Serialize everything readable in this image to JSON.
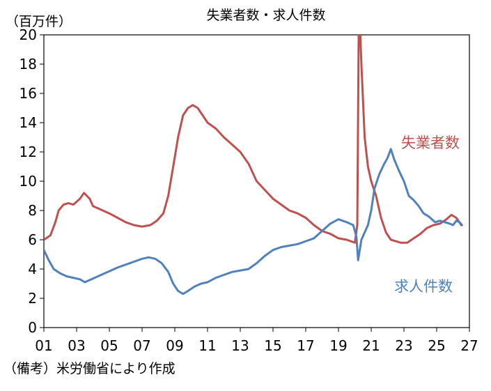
{
  "chart_data": {
    "type": "line",
    "title": "失業者数・求人件数",
    "y_unit": "（百万件）",
    "source": "（備考）米労働省により作成",
    "x_range": [
      2001.0,
      2027.0
    ],
    "ylim": [
      0,
      20
    ],
    "y_ticks": [
      0,
      2,
      4,
      6,
      8,
      10,
      12,
      14,
      16,
      18,
      20
    ],
    "x_ticks": [
      {
        "x": 2001,
        "label": "01"
      },
      {
        "x": 2003,
        "label": "03"
      },
      {
        "x": 2005,
        "label": "05"
      },
      {
        "x": 2007,
        "label": "07"
      },
      {
        "x": 2009,
        "label": "09"
      },
      {
        "x": 2011,
        "label": "11"
      },
      {
        "x": 2013,
        "label": "13"
      },
      {
        "x": 2015,
        "label": "15"
      },
      {
        "x": 2017,
        "label": "17"
      },
      {
        "x": 2019,
        "label": "19"
      },
      {
        "x": 2021,
        "label": "21"
      },
      {
        "x": 2023,
        "label": "23"
      },
      {
        "x": 2025,
        "label": "25"
      },
      {
        "x": 2027,
        "label": "27"
      }
    ],
    "grid": false,
    "legend": "direct labels",
    "series": [
      {
        "name": "失業者数",
        "color": "#C0504D",
        "points": [
          [
            2001.0,
            6.0
          ],
          [
            2001.4,
            6.3
          ],
          [
            2001.7,
            7.2
          ],
          [
            2001.9,
            8.0
          ],
          [
            2002.2,
            8.4
          ],
          [
            2002.5,
            8.5
          ],
          [
            2002.8,
            8.4
          ],
          [
            2003.2,
            8.8
          ],
          [
            2003.45,
            9.2
          ],
          [
            2003.8,
            8.8
          ],
          [
            2004.0,
            8.3
          ],
          [
            2004.4,
            8.1
          ],
          [
            2005.0,
            7.8
          ],
          [
            2005.5,
            7.5
          ],
          [
            2006.0,
            7.2
          ],
          [
            2006.5,
            7.0
          ],
          [
            2007.0,
            6.9
          ],
          [
            2007.5,
            7.0
          ],
          [
            2007.9,
            7.3
          ],
          [
            2008.3,
            7.8
          ],
          [
            2008.6,
            9.0
          ],
          [
            2008.9,
            11.0
          ],
          [
            2009.2,
            13.0
          ],
          [
            2009.5,
            14.5
          ],
          [
            2009.8,
            15.0
          ],
          [
            2010.1,
            15.2
          ],
          [
            2010.4,
            15.0
          ],
          [
            2010.7,
            14.5
          ],
          [
            2011.0,
            14.0
          ],
          [
            2011.5,
            13.6
          ],
          [
            2012.0,
            13.0
          ],
          [
            2012.5,
            12.5
          ],
          [
            2013.0,
            12.0
          ],
          [
            2013.5,
            11.2
          ],
          [
            2014.0,
            10.0
          ],
          [
            2014.5,
            9.4
          ],
          [
            2015.0,
            8.8
          ],
          [
            2015.5,
            8.4
          ],
          [
            2016.0,
            8.0
          ],
          [
            2016.5,
            7.8
          ],
          [
            2017.0,
            7.5
          ],
          [
            2017.5,
            7.0
          ],
          [
            2018.0,
            6.6
          ],
          [
            2018.5,
            6.4
          ],
          [
            2019.0,
            6.1
          ],
          [
            2019.5,
            6.0
          ],
          [
            2020.0,
            5.8
          ],
          [
            2020.15,
            7.0
          ],
          [
            2020.25,
            22.5
          ],
          [
            2020.4,
            18.0
          ],
          [
            2020.6,
            13.0
          ],
          [
            2020.8,
            11.0
          ],
          [
            2021.0,
            10.0
          ],
          [
            2021.3,
            9.0
          ],
          [
            2021.6,
            7.5
          ],
          [
            2021.9,
            6.5
          ],
          [
            2022.2,
            6.0
          ],
          [
            2022.5,
            5.9
          ],
          [
            2022.8,
            5.8
          ],
          [
            2023.2,
            5.8
          ],
          [
            2023.6,
            6.1
          ],
          [
            2024.0,
            6.4
          ],
          [
            2024.4,
            6.8
          ],
          [
            2024.8,
            7.0
          ],
          [
            2025.2,
            7.1
          ],
          [
            2025.6,
            7.4
          ],
          [
            2025.9,
            7.7
          ],
          [
            2026.2,
            7.5
          ],
          [
            2026.5,
            7.0
          ]
        ]
      },
      {
        "name": "求人件数",
        "color": "#4F81BD",
        "points": [
          [
            2001.0,
            5.3
          ],
          [
            2001.3,
            4.6
          ],
          [
            2001.6,
            4.0
          ],
          [
            2002.0,
            3.7
          ],
          [
            2002.4,
            3.5
          ],
          [
            2002.8,
            3.4
          ],
          [
            2003.2,
            3.3
          ],
          [
            2003.5,
            3.1
          ],
          [
            2003.9,
            3.3
          ],
          [
            2004.3,
            3.5
          ],
          [
            2004.7,
            3.7
          ],
          [
            2005.1,
            3.9
          ],
          [
            2005.5,
            4.1
          ],
          [
            2006.0,
            4.3
          ],
          [
            2006.5,
            4.5
          ],
          [
            2007.0,
            4.7
          ],
          [
            2007.4,
            4.8
          ],
          [
            2007.8,
            4.7
          ],
          [
            2008.2,
            4.4
          ],
          [
            2008.6,
            3.8
          ],
          [
            2008.9,
            3.0
          ],
          [
            2009.2,
            2.5
          ],
          [
            2009.5,
            2.3
          ],
          [
            2009.8,
            2.5
          ],
          [
            2010.2,
            2.8
          ],
          [
            2010.6,
            3.0
          ],
          [
            2011.0,
            3.1
          ],
          [
            2011.5,
            3.4
          ],
          [
            2012.0,
            3.6
          ],
          [
            2012.5,
            3.8
          ],
          [
            2013.0,
            3.9
          ],
          [
            2013.5,
            4.0
          ],
          [
            2014.0,
            4.4
          ],
          [
            2014.5,
            4.9
          ],
          [
            2015.0,
            5.3
          ],
          [
            2015.5,
            5.5
          ],
          [
            2016.0,
            5.6
          ],
          [
            2016.5,
            5.7
          ],
          [
            2017.0,
            5.9
          ],
          [
            2017.5,
            6.1
          ],
          [
            2018.0,
            6.6
          ],
          [
            2018.5,
            7.1
          ],
          [
            2019.0,
            7.4
          ],
          [
            2019.5,
            7.2
          ],
          [
            2019.9,
            7.0
          ],
          [
            2020.1,
            6.2
          ],
          [
            2020.2,
            4.6
          ],
          [
            2020.4,
            6.0
          ],
          [
            2020.6,
            6.5
          ],
          [
            2020.8,
            7.0
          ],
          [
            2021.0,
            8.0
          ],
          [
            2021.2,
            9.5
          ],
          [
            2021.5,
            10.5
          ],
          [
            2021.8,
            11.2
          ],
          [
            2022.0,
            11.6
          ],
          [
            2022.2,
            12.2
          ],
          [
            2022.4,
            11.5
          ],
          [
            2022.7,
            10.7
          ],
          [
            2023.0,
            10.0
          ],
          [
            2023.3,
            9.0
          ],
          [
            2023.6,
            8.7
          ],
          [
            2023.9,
            8.3
          ],
          [
            2024.2,
            7.8
          ],
          [
            2024.5,
            7.6
          ],
          [
            2024.9,
            7.2
          ],
          [
            2025.2,
            7.3
          ],
          [
            2025.5,
            7.2
          ],
          [
            2025.8,
            7.1
          ],
          [
            2026.0,
            7.0
          ],
          [
            2026.2,
            7.3
          ],
          [
            2026.4,
            7.2
          ],
          [
            2026.55,
            7.0
          ]
        ]
      }
    ]
  }
}
